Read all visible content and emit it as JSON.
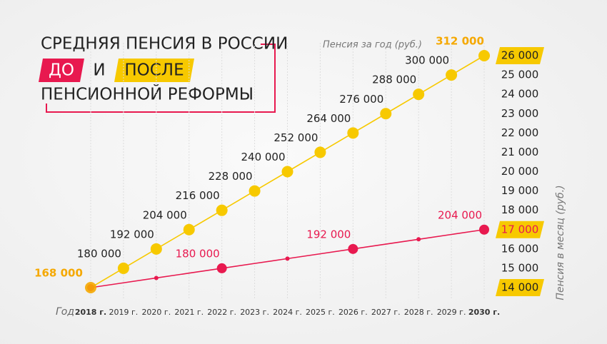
{
  "chart_data": {
    "type": "line",
    "title": "СРЕДНЯЯ ПЕНСИЯ В РОССИИ",
    "title_joiner": "И",
    "subtitle": "ПЕНСИОННОЙ РЕФОРМЫ",
    "y_label": "Пенсия за год (руб.)",
    "y2_label": "Пенсия в месяц (руб.)",
    "x_label": "Год",
    "categories": [
      "2018 г.",
      "2019 г.",
      "2020 г.",
      "2021 г.",
      "2022 г.",
      "2023 г.",
      "2024 г.",
      "2025 г.",
      "2026 г.",
      "2027 г.",
      "2028 г.",
      "2029 г.",
      "2030 г."
    ],
    "series": [
      {
        "name": "ДО",
        "color": "#e8194f",
        "values": [
          168000,
          171000,
          174000,
          177000,
          180000,
          183000,
          186000,
          189000,
          192000,
          195000,
          198000,
          201000,
          204000
        ],
        "value_labels": [
          null,
          null,
          null,
          null,
          "180 000",
          null,
          null,
          null,
          "192 000",
          null,
          null,
          null,
          "204 000"
        ]
      },
      {
        "name": "ПОСЛЕ",
        "color": "#f7c900",
        "values": [
          168000,
          180000,
          192000,
          204000,
          216000,
          228000,
          240000,
          252000,
          264000,
          276000,
          288000,
          300000,
          312000
        ],
        "value_labels": [
          "168 000",
          "180 000",
          "192 000",
          "204 000",
          "216 000",
          "228 000",
          "240 000",
          "252 000",
          "264 000",
          "276 000",
          "288 000",
          "300 000",
          "312 000"
        ]
      }
    ],
    "ylim": [
      168000,
      312000
    ],
    "y2lim": [
      14000,
      26000
    ],
    "y2ticks": [
      {
        "value": 14000,
        "label": "14 000"
      },
      {
        "value": 15000,
        "label": "15 000"
      },
      {
        "value": 16000,
        "label": "16 000"
      },
      {
        "value": 17000,
        "label": "17 000"
      },
      {
        "value": 18000,
        "label": "18 000"
      },
      {
        "value": 19000,
        "label": "19 000"
      },
      {
        "value": 20000,
        "label": "20 000"
      },
      {
        "value": 21000,
        "label": "21 000"
      },
      {
        "value": 22000,
        "label": "22 000"
      },
      {
        "value": 23000,
        "label": "23 000"
      },
      {
        "value": 24000,
        "label": "24 000"
      },
      {
        "value": 25000,
        "label": "25 000"
      },
      {
        "value": 26000,
        "label": "26 000"
      }
    ],
    "grid": true
  }
}
